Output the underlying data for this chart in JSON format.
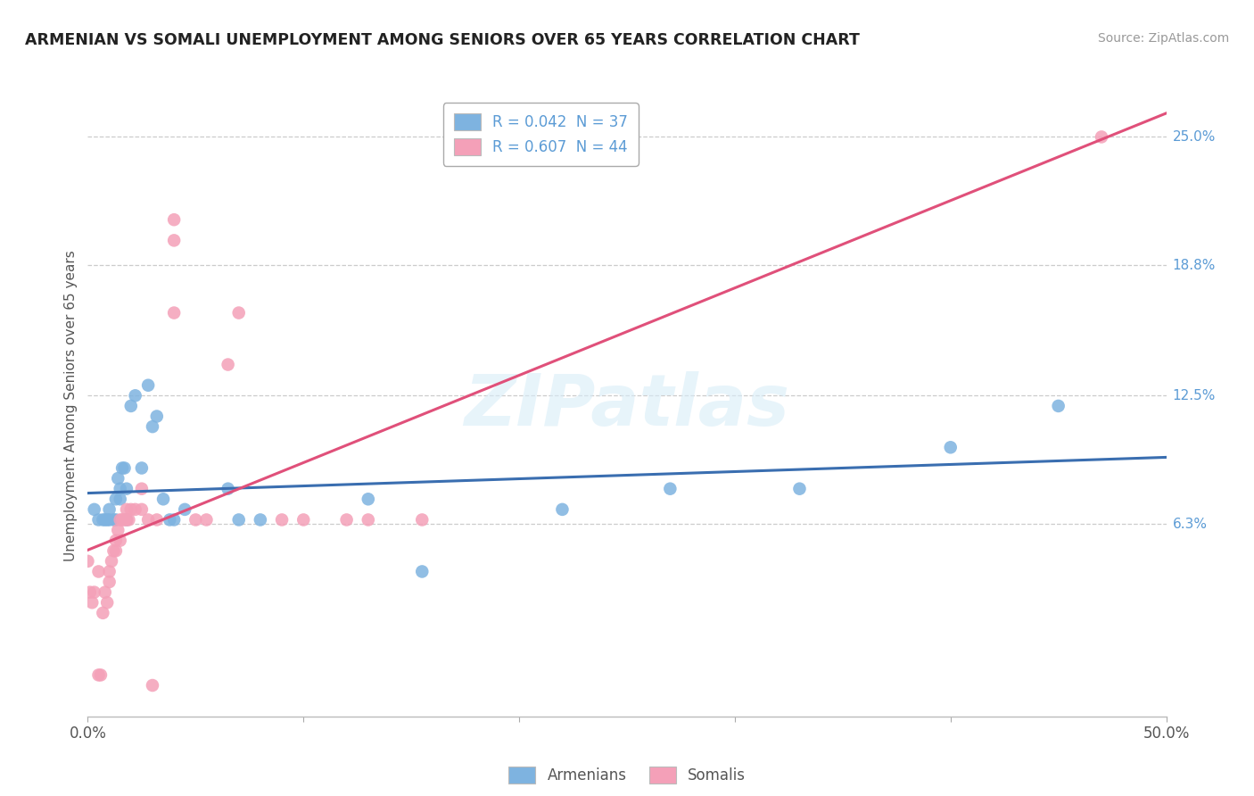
{
  "title": "ARMENIAN VS SOMALI UNEMPLOYMENT AMONG SENIORS OVER 65 YEARS CORRELATION CHART",
  "source": "Source: ZipAtlas.com",
  "ylabel": "Unemployment Among Seniors over 65 years",
  "xlim": [
    0.0,
    0.5
  ],
  "ylim": [
    -0.03,
    0.27
  ],
  "ytick_labels_right": [
    "25.0%",
    "18.8%",
    "12.5%",
    "6.3%"
  ],
  "ytick_vals_right": [
    0.25,
    0.188,
    0.125,
    0.063
  ],
  "watermark": "ZIPatlas",
  "legend_armenian": "R = 0.042  N = 37",
  "legend_somali": "R = 0.607  N = 44",
  "armenian_color": "#7eb3e0",
  "somali_color": "#f4a0b8",
  "armenian_line_color": "#3a6eb0",
  "somali_line_color": "#e0507a",
  "background_color": "#ffffff",
  "grid_color": "#cccccc",
  "armenians_x": [
    0.003,
    0.005,
    0.007,
    0.008,
    0.009,
    0.01,
    0.01,
    0.012,
    0.013,
    0.013,
    0.014,
    0.015,
    0.015,
    0.016,
    0.017,
    0.018,
    0.018,
    0.02,
    0.022,
    0.025,
    0.028,
    0.03,
    0.032,
    0.035,
    0.038,
    0.04,
    0.045,
    0.065,
    0.07,
    0.08,
    0.13,
    0.155,
    0.22,
    0.27,
    0.33,
    0.4,
    0.45
  ],
  "armenians_y": [
    0.07,
    0.065,
    0.065,
    0.065,
    0.065,
    0.065,
    0.07,
    0.065,
    0.065,
    0.075,
    0.085,
    0.08,
    0.075,
    0.09,
    0.09,
    0.065,
    0.08,
    0.12,
    0.125,
    0.09,
    0.13,
    0.11,
    0.115,
    0.075,
    0.065,
    0.065,
    0.07,
    0.08,
    0.065,
    0.065,
    0.075,
    0.04,
    0.07,
    0.08,
    0.08,
    0.1,
    0.12
  ],
  "somalis_x": [
    0.0,
    0.001,
    0.002,
    0.003,
    0.005,
    0.005,
    0.006,
    0.007,
    0.008,
    0.009,
    0.01,
    0.01,
    0.011,
    0.012,
    0.013,
    0.013,
    0.014,
    0.015,
    0.015,
    0.016,
    0.017,
    0.018,
    0.018,
    0.019,
    0.02,
    0.022,
    0.025,
    0.025,
    0.028,
    0.03,
    0.032,
    0.04,
    0.04,
    0.04,
    0.05,
    0.055,
    0.065,
    0.07,
    0.09,
    0.1,
    0.12,
    0.13,
    0.155,
    0.47
  ],
  "somalis_y": [
    0.045,
    0.03,
    0.025,
    0.03,
    0.04,
    -0.01,
    -0.01,
    0.02,
    0.03,
    0.025,
    0.035,
    0.04,
    0.045,
    0.05,
    0.05,
    0.055,
    0.06,
    0.065,
    0.055,
    0.065,
    0.065,
    0.07,
    0.065,
    0.065,
    0.07,
    0.07,
    0.07,
    0.08,
    0.065,
    -0.015,
    0.065,
    0.2,
    0.21,
    0.165,
    0.065,
    0.065,
    0.14,
    0.165,
    0.065,
    0.065,
    0.065,
    0.065,
    0.065,
    0.25
  ]
}
